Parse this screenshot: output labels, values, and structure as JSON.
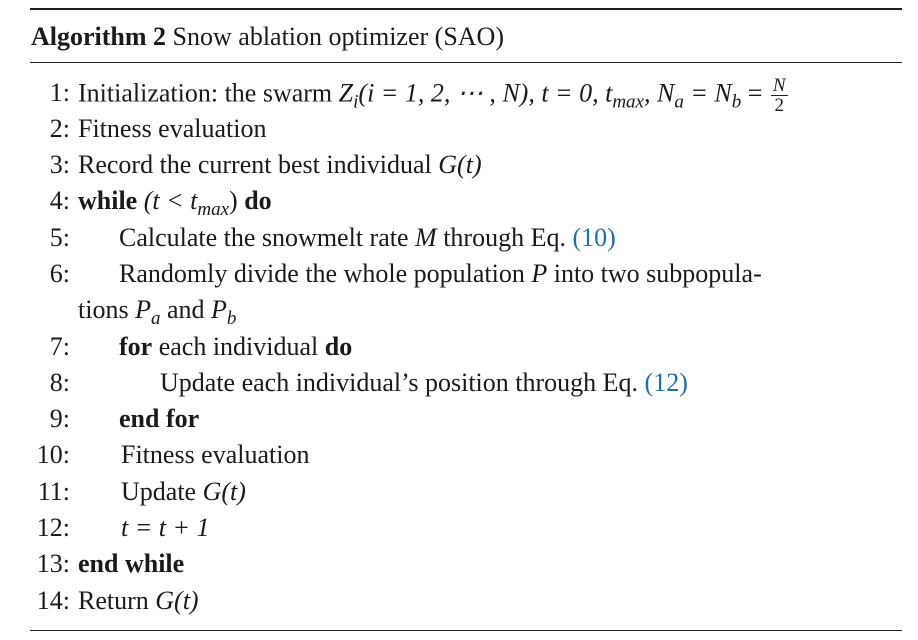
{
  "algorithm": {
    "label": "Algorithm 2",
    "title": "Snow ablation optimizer (SAO)"
  },
  "lines": [
    {
      "num": "1:",
      "prefix": "Initialization: the swarm",
      "math": "Z",
      "sub": "i",
      "rest": "(i = 1, 2, ⋯ , N), t = 0, t",
      "sub2": "max",
      "rest2": ", N",
      "sub3": "a",
      "rest3": " = N",
      "sub4": "b",
      "rest4": " =",
      "frac_num": "N",
      "frac_den": "2"
    },
    {
      "num": "2:",
      "text": "Fitness evaluation"
    },
    {
      "num": "3:",
      "text": "Record the current best individual ",
      "math": "G(t)"
    },
    {
      "num": "4:",
      "kw1": "while",
      "text": " (t < t",
      "sub": "max",
      "text2": ") ",
      "kw2": "do"
    },
    {
      "num": "5:",
      "text": "Calculate the snowmelt rate ",
      "math": "M",
      "text2": " through Eq. ",
      "ref": "(10)"
    },
    {
      "num": "6:",
      "text": "Randomly divide the whole population ",
      "math": "P",
      "text2": " into two subpopula-"
    },
    {
      "num": "",
      "text": "tions ",
      "math": "P",
      "sub": "a",
      "text2": " and ",
      "math2": "P",
      "sub2": "b"
    },
    {
      "num": "7:",
      "kw1": "for",
      "text": " each individual ",
      "kw2": "do"
    },
    {
      "num": "8:",
      "text": "Update each individual’s position through Eq. ",
      "ref": "(12)"
    },
    {
      "num": "9:",
      "kw1": "end for"
    },
    {
      "num": "10:",
      "text": "Fitness evaluation"
    },
    {
      "num": "11:",
      "text": "Update ",
      "math": "G(t)"
    },
    {
      "num": "12:",
      "math": "t = t + 1"
    },
    {
      "num": "13:",
      "kw1": "end while"
    },
    {
      "num": "14:",
      "text": "Return ",
      "math": "G(t)"
    }
  ]
}
